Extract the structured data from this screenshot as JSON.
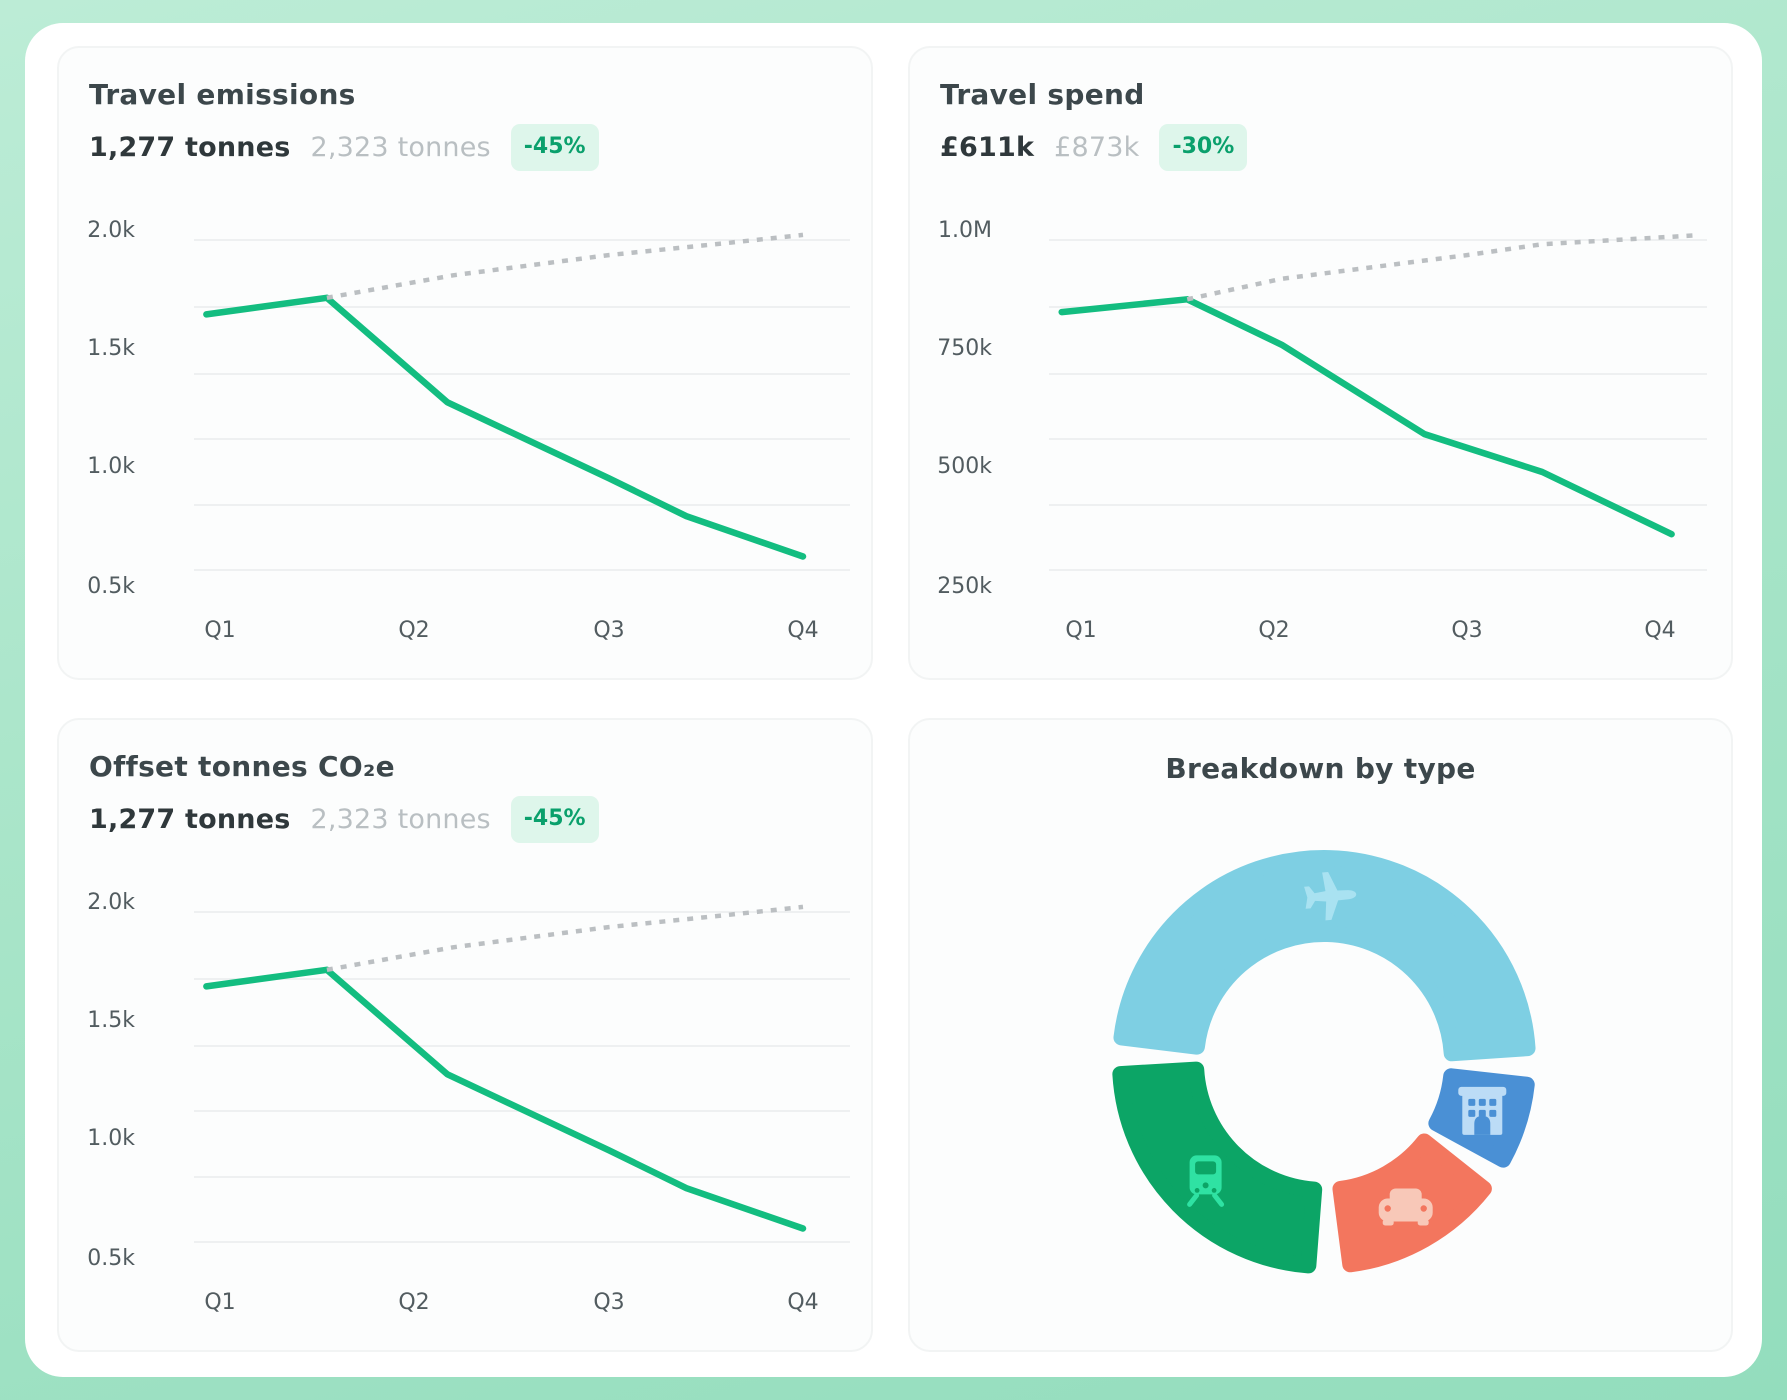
{
  "colors": {
    "background_mint": "#a9e5c9",
    "surface_white": "#ffffff",
    "card_surface": "#fcfdfd",
    "title_text": "#3c474b",
    "current_value_text": "#2f383b",
    "previous_value_text": "#b9bfc2",
    "badge_text": "#0aa06c",
    "badge_background": "#def6eb",
    "accent_line_green": "#13bd80",
    "target_line_gray": "#bbbfc2",
    "gridline": "#eef0f1",
    "donut_flights": "#7ecfe3",
    "donut_hotels": "#4a90d5",
    "donut_cars": "#f3765e",
    "donut_trains": "#0ca566"
  },
  "cards": {
    "emissions": {
      "title": "Travel emissions",
      "current": "1,277 tonnes",
      "previous": "2,323 tonnes",
      "change": "-45%"
    },
    "spend": {
      "title": "Travel spend",
      "current": "£611k",
      "previous": "£873k",
      "change": "-30%"
    },
    "offset": {
      "title": "Offset tonnes CO₂e",
      "current": "1,277 tonnes",
      "previous": "2,323 tonnes",
      "change": "-45%"
    },
    "breakdown": {
      "title": "Breakdown by type"
    }
  },
  "chart_data": [
    {
      "id": "emissions",
      "type": "line",
      "title": "Travel emissions",
      "unit": "tonnes CO2e",
      "x_tick_labels": [
        "Q1",
        "Q2",
        "Q3",
        "Q4"
      ],
      "y_tick_labels": [
        "2.0k",
        "1.5k",
        "1.0k",
        "0.5k"
      ],
      "y_tick_values": [
        2000,
        1500,
        1000,
        500
      ],
      "grid": "horizontal-only",
      "legend": "none",
      "series": [
        {
          "name": "actual",
          "line_style": "solid",
          "color": "#13bd80",
          "x": [
            -0.07,
            0.55,
            1.17,
            2.0,
            2.4,
            3.0
          ],
          "values": [
            1640,
            1710,
            1270,
            950,
            790,
            620
          ]
        },
        {
          "name": "previous-trend",
          "line_style": "dashed",
          "color": "#bbbfc2",
          "x": [
            0.55,
            1.2,
            2.0,
            2.6,
            3.0
          ],
          "values": [
            1710,
            1805,
            1890,
            1940,
            1975
          ]
        }
      ]
    },
    {
      "id": "spend",
      "type": "line",
      "title": "Travel spend",
      "unit": "GBP (thousands)",
      "x_tick_labels": [
        "Q1",
        "Q2",
        "Q3",
        "Q4"
      ],
      "y_tick_labels": [
        "1.0M",
        "750k",
        "500k",
        "250k"
      ],
      "y_tick_values": [
        1000,
        750,
        500,
        250
      ],
      "grid": "horizontal-only",
      "legend": "none",
      "series": [
        {
          "name": "actual",
          "line_style": "solid",
          "color": "#13bd80",
          "x": [
            -0.1,
            0.55,
            1.04,
            1.78,
            2.39,
            3.06
          ],
          "values": [
            825,
            852,
            756,
            568,
            488,
            357
          ]
        },
        {
          "name": "previous-trend",
          "line_style": "dashed",
          "color": "#bbbfc2",
          "x": [
            0.55,
            1.04,
            2.0,
            2.39,
            3.2
          ],
          "values": [
            852,
            895,
            945,
            968,
            987
          ]
        }
      ]
    },
    {
      "id": "offset",
      "type": "line",
      "title": "Offset tonnes CO₂e",
      "unit": "tonnes CO2e",
      "x_tick_labels": [
        "Q1",
        "Q2",
        "Q3",
        "Q4"
      ],
      "y_tick_labels": [
        "2.0k",
        "1.5k",
        "1.0k",
        "0.5k"
      ],
      "y_tick_values": [
        2000,
        1500,
        1000,
        500
      ],
      "grid": "horizontal-only",
      "legend": "none",
      "series": [
        {
          "name": "actual",
          "line_style": "solid",
          "color": "#13bd80",
          "x": [
            -0.07,
            0.55,
            1.17,
            2.0,
            2.4,
            3.0
          ],
          "values": [
            1640,
            1710,
            1270,
            950,
            790,
            620
          ]
        },
        {
          "name": "previous-trend",
          "line_style": "dashed",
          "color": "#bbbfc2",
          "x": [
            0.55,
            1.2,
            2.0,
            2.6,
            3.0
          ],
          "values": [
            1710,
            1805,
            1890,
            1940,
            1975
          ]
        }
      ]
    },
    {
      "id": "breakdown",
      "type": "donut",
      "title": "Breakdown by type",
      "segments": [
        {
          "label": "flights",
          "share_pct": 52,
          "color": "#7ecfe3",
          "icon": "plane-icon",
          "icon_color": "#a9e2f1",
          "start_angle": 274.5,
          "end_angle": 448.5
        },
        {
          "label": "hotels",
          "share_pct": 8,
          "color": "#4a90d5",
          "icon": "hotel-icon",
          "icon_color": "#bcdcf6",
          "start_angle": 94,
          "end_angle": 121
        },
        {
          "label": "cars",
          "share_pct": 14,
          "color": "#f3765e",
          "icon": "car-icon",
          "icon_color": "#f8c8b8",
          "start_angle": 126,
          "end_angle": 175
        },
        {
          "label": "trains",
          "share_pct": 26,
          "color": "#0ca566",
          "icon": "train-icon",
          "icon_color": "#2fe2a3",
          "start_angle": 182,
          "end_angle": 269
        }
      ]
    }
  ]
}
